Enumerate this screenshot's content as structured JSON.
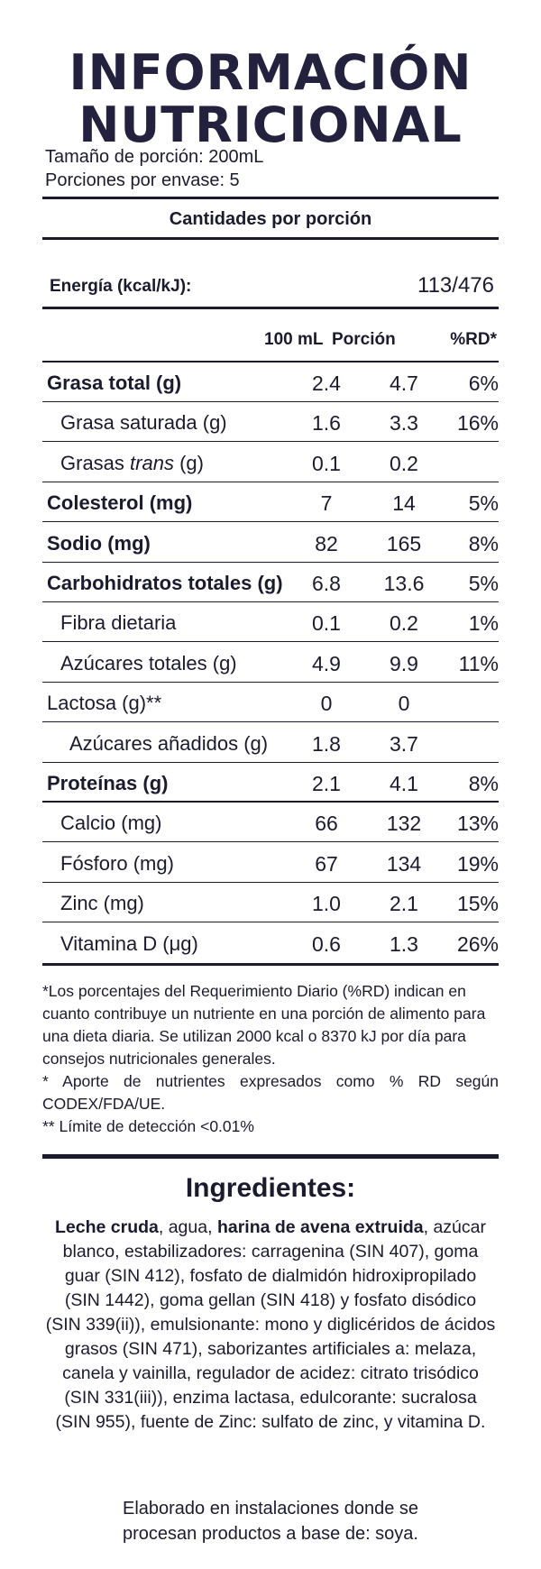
{
  "title": {
    "line1": "INFORMACIÓN",
    "line2": "NUTRICIONAL"
  },
  "serving": {
    "size": "Tamaño de porción: 200mL",
    "per_container": "Porciones por envase: 5"
  },
  "amounts_heading": "Cantidades por porción",
  "energy": {
    "label": "Energía (kcal/kJ):",
    "value": "113/476"
  },
  "columns": [
    "100 mL",
    "Porción",
    "%RD*"
  ],
  "rows": [
    {
      "label": "Grasa total (g)",
      "bold": true,
      "indent": 0,
      "v100": "2.4",
      "portion": "4.7",
      "rd": "6%"
    },
    {
      "label": "Grasa saturada (g)",
      "bold": false,
      "indent": 1,
      "v100": "1.6",
      "portion": "3.3",
      "rd": "16%"
    },
    {
      "label": "Grasas trans (g)",
      "bold": false,
      "indent": 1,
      "italic_word": "trans",
      "v100": "0.1",
      "portion": "0.2",
      "rd": ""
    },
    {
      "label": "Colesterol (mg)",
      "bold": true,
      "indent": 0,
      "v100": "7",
      "portion": "14",
      "rd": "5%"
    },
    {
      "label": "Sodio (mg)",
      "bold": true,
      "indent": 0,
      "v100": "82",
      "portion": "165",
      "rd": "8%"
    },
    {
      "label": "Carbohidratos totales (g)",
      "bold": true,
      "indent": 0,
      "v100": "6.8",
      "portion": "13.6",
      "rd": "5%"
    },
    {
      "label": "Fibra dietaria",
      "bold": false,
      "indent": 1,
      "v100": "0.1",
      "portion": "0.2",
      "rd": "1%"
    },
    {
      "label": "Azúcares totales (g)",
      "bold": false,
      "indent": 1,
      "v100": "4.9",
      "portion": "9.9",
      "rd": "11%"
    },
    {
      "label": "Lactosa (g)**",
      "bold": false,
      "indent": 0,
      "v100": "0",
      "portion": "0",
      "rd": ""
    },
    {
      "label": "Azúcares añadidos (g)",
      "bold": false,
      "indent": 2,
      "v100": "1.8",
      "portion": "3.7",
      "rd": ""
    },
    {
      "label": "Proteínas (g)",
      "bold": true,
      "indent": 0,
      "v100": "2.1",
      "portion": "4.1",
      "rd": "8%"
    },
    {
      "label": "Calcio (mg)",
      "bold": false,
      "indent": 1,
      "v100": "66",
      "portion": "132",
      "rd": "13%"
    },
    {
      "label": "Fósforo (mg)",
      "bold": false,
      "indent": 1,
      "v100": "67",
      "portion": "134",
      "rd": "19%"
    },
    {
      "label": "Zinc (mg)",
      "bold": false,
      "indent": 1,
      "v100": "1.0",
      "portion": "2.1",
      "rd": "15%"
    },
    {
      "label": "Vitamina D (μg)",
      "bold": false,
      "indent": 1,
      "v100": "0.6",
      "portion": "1.3",
      "rd": "26%"
    }
  ],
  "footnotes": [
    "*Los porcentajes del Requerimiento Diario (%RD) indican en cuanto contribuye un nutriente en una porción de alimento para una dieta diaria. Se utilizan 2000 kcal o 8370 kJ por día para consejos nutricionales generales.",
    "* Aporte de nutrientes expresados como % RD según CODEX/FDA/UE.",
    "** Límite de detección <0.01%"
  ],
  "ingredients": {
    "title": "Ingredientes:",
    "bold1": "Leche cruda",
    "text1": ", agua, ",
    "bold2": "harina de avena extruida",
    "text2": ", azúcar blanco, estabilizadores: carragenina (SIN 407), goma guar (SIN 412), fosfato de dialmidón hidroxipropilado (SIN 1442), goma gellan (SIN 418) y fosfato disódico (SIN 339(ii)), emulsionante: mono y diglicéridos de ácidos grasos (SIN 471), saborizantes artificiales a: melaza, canela y vainilla, regulador de acidez: citrato trisódico (SIN 331(iii)), enzima lactasa, edulcorante: sucralosa (SIN 955), fuente de Zinc: sulfato de zinc, y vitamina D."
  },
  "facility": {
    "line1": "Elaborado en instalaciones donde se",
    "line2": "procesan productos a base de: soya."
  }
}
